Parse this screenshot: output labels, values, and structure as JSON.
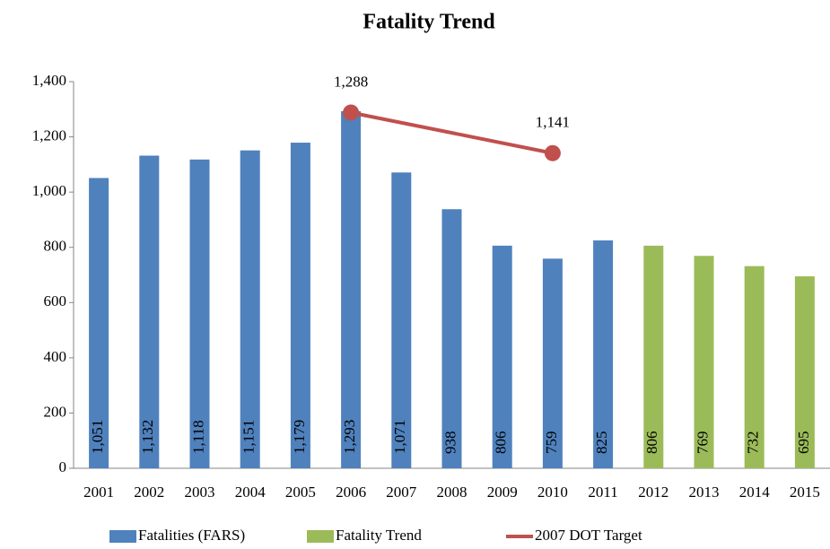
{
  "chart_data": {
    "type": "bar",
    "title": "Fatality Trend",
    "categories": [
      "2001",
      "2002",
      "2003",
      "2004",
      "2005",
      "2006",
      "2007",
      "2008",
      "2009",
      "2010",
      "2011",
      "2012",
      "2013",
      "2014",
      "2015"
    ],
    "series": [
      {
        "name": "Fatalities (FARS)",
        "color": "#4f81bd",
        "values": [
          1051,
          1132,
          1118,
          1151,
          1179,
          1293,
          1071,
          938,
          806,
          759,
          825,
          null,
          null,
          null,
          null
        ],
        "value_labels": [
          "1,051",
          "1,132",
          "1,118",
          "1,151",
          "1,179",
          "1,293",
          "1,071",
          "938",
          "806",
          "759",
          "825",
          null,
          null,
          null,
          null
        ]
      },
      {
        "name": "Fatality Trend",
        "color": "#9bbb59",
        "values": [
          null,
          null,
          null,
          null,
          null,
          null,
          null,
          null,
          null,
          null,
          null,
          806,
          769,
          732,
          695
        ],
        "value_labels": [
          null,
          null,
          null,
          null,
          null,
          null,
          null,
          null,
          null,
          null,
          null,
          "806",
          "769",
          "732",
          "695"
        ]
      },
      {
        "name": "2007 DOT Target",
        "color": "#c0504d",
        "type": "line",
        "values": [
          null,
          null,
          null,
          null,
          null,
          1288,
          null,
          null,
          null,
          1141,
          null,
          null,
          null,
          null,
          null
        ],
        "value_labels": [
          null,
          null,
          null,
          null,
          null,
          "1,288",
          null,
          null,
          null,
          "1,141",
          null,
          null,
          null,
          null,
          null
        ]
      }
    ],
    "ylim": [
      0,
      1400
    ],
    "yticks": [
      0,
      200,
      400,
      600,
      800,
      {
        "value": 1000,
        "label": "1,000"
      },
      {
        "value": 1200,
        "label": "1,200"
      },
      {
        "value": 1400,
        "label": "1,400"
      }
    ],
    "grid": false,
    "legend": "bottom"
  }
}
